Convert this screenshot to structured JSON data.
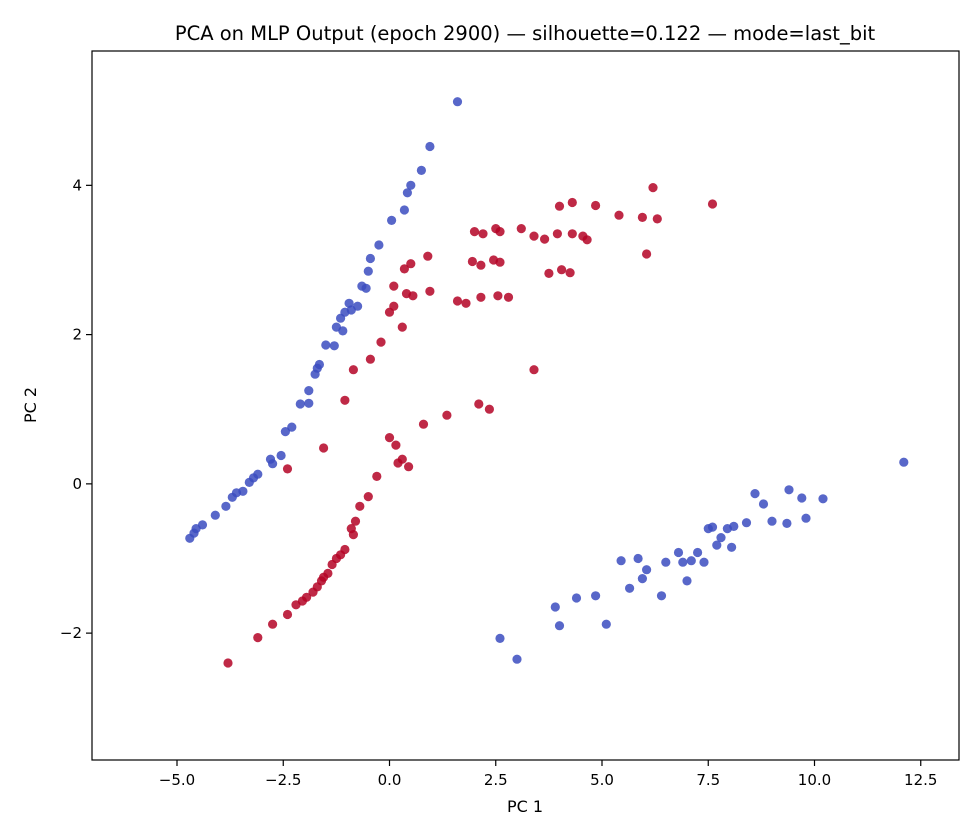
{
  "chart_data": {
    "type": "scatter",
    "title": "PCA on MLP Output (epoch 2900) — silhouette=0.122 — mode=last_bit",
    "xlabel": "PC 1",
    "ylabel": "PC 2",
    "xlim": [
      -7.0,
      13.4
    ],
    "ylim": [
      -3.7,
      5.8
    ],
    "xticks": [
      -5.0,
      -2.5,
      0.0,
      2.5,
      5.0,
      7.5,
      10.0,
      12.5
    ],
    "xtick_labels": [
      "−5.0",
      "−2.5",
      "0.0",
      "2.5",
      "5.0",
      "7.5",
      "10.0",
      "12.5"
    ],
    "yticks": [
      -2,
      0,
      2,
      4
    ],
    "ytick_labels": [
      "−2",
      "0",
      "2",
      "4"
    ],
    "grid": false,
    "legend": null,
    "series": [
      {
        "color": "#3b4cc0",
        "points": [
          [
            -4.7,
            -0.73
          ],
          [
            -4.6,
            -0.66
          ],
          [
            -4.55,
            -0.6
          ],
          [
            -4.4,
            -0.55
          ],
          [
            -4.1,
            -0.42
          ],
          [
            -3.85,
            -0.3
          ],
          [
            -3.7,
            -0.18
          ],
          [
            -3.6,
            -0.12
          ],
          [
            -3.45,
            -0.1
          ],
          [
            -3.3,
            0.02
          ],
          [
            -3.2,
            0.08
          ],
          [
            -3.1,
            0.13
          ],
          [
            -2.8,
            0.33
          ],
          [
            -2.75,
            0.27
          ],
          [
            -2.55,
            0.38
          ],
          [
            -2.45,
            0.7
          ],
          [
            -2.3,
            0.76
          ],
          [
            -2.1,
            1.07
          ],
          [
            -1.9,
            1.08
          ],
          [
            -1.9,
            1.25
          ],
          [
            -1.75,
            1.47
          ],
          [
            -1.7,
            1.55
          ],
          [
            -1.65,
            1.6
          ],
          [
            -1.5,
            1.86
          ],
          [
            -1.3,
            1.85
          ],
          [
            -1.25,
            2.1
          ],
          [
            -1.15,
            2.22
          ],
          [
            -1.1,
            2.05
          ],
          [
            -1.05,
            2.3
          ],
          [
            -0.95,
            2.42
          ],
          [
            -0.9,
            2.33
          ],
          [
            -0.75,
            2.38
          ],
          [
            -0.65,
            2.65
          ],
          [
            -0.55,
            2.62
          ],
          [
            -0.5,
            2.85
          ],
          [
            -0.45,
            3.02
          ],
          [
            -0.25,
            3.2
          ],
          [
            0.05,
            3.53
          ],
          [
            0.35,
            3.67
          ],
          [
            0.42,
            3.9
          ],
          [
            0.5,
            4.0
          ],
          [
            0.75,
            4.2
          ],
          [
            0.95,
            4.52
          ],
          [
            1.6,
            5.12
          ],
          [
            2.6,
            -2.07
          ],
          [
            3.0,
            -2.35
          ],
          [
            3.9,
            -1.65
          ],
          [
            4.0,
            -1.9
          ],
          [
            4.4,
            -1.53
          ],
          [
            4.85,
            -1.5
          ],
          [
            5.1,
            -1.88
          ],
          [
            5.45,
            -1.03
          ],
          [
            5.65,
            -1.4
          ],
          [
            5.85,
            -1.0
          ],
          [
            5.95,
            -1.27
          ],
          [
            6.05,
            -1.15
          ],
          [
            6.4,
            -1.5
          ],
          [
            6.5,
            -1.05
          ],
          [
            6.8,
            -0.92
          ],
          [
            6.9,
            -1.05
          ],
          [
            7.0,
            -1.3
          ],
          [
            7.1,
            -1.03
          ],
          [
            7.25,
            -0.92
          ],
          [
            7.4,
            -1.05
          ],
          [
            7.5,
            -0.6
          ],
          [
            7.6,
            -0.58
          ],
          [
            7.7,
            -0.82
          ],
          [
            7.8,
            -0.72
          ],
          [
            7.95,
            -0.6
          ],
          [
            8.05,
            -0.85
          ],
          [
            8.1,
            -0.57
          ],
          [
            8.4,
            -0.52
          ],
          [
            8.6,
            -0.13
          ],
          [
            8.8,
            -0.27
          ],
          [
            9.0,
            -0.5
          ],
          [
            9.35,
            -0.53
          ],
          [
            9.4,
            -0.08
          ],
          [
            9.7,
            -0.19
          ],
          [
            9.8,
            -0.46
          ],
          [
            10.2,
            -0.2
          ],
          [
            12.1,
            0.29
          ]
        ]
      },
      {
        "color": "#b40426",
        "points": [
          [
            -3.8,
            -2.4
          ],
          [
            -3.1,
            -2.06
          ],
          [
            -2.75,
            -1.88
          ],
          [
            -2.4,
            -1.75
          ],
          [
            -2.2,
            -1.62
          ],
          [
            -2.05,
            -1.57
          ],
          [
            -1.95,
            -1.52
          ],
          [
            -1.8,
            -1.45
          ],
          [
            -1.7,
            -1.38
          ],
          [
            -1.6,
            -1.3
          ],
          [
            -1.55,
            -1.25
          ],
          [
            -1.45,
            -1.2
          ],
          [
            -1.35,
            -1.08
          ],
          [
            -1.25,
            -1.0
          ],
          [
            -1.15,
            -0.95
          ],
          [
            -1.05,
            -0.88
          ],
          [
            -0.85,
            -0.68
          ],
          [
            -0.9,
            -0.6
          ],
          [
            -0.8,
            -0.5
          ],
          [
            -0.7,
            -0.3
          ],
          [
            -0.5,
            -0.17
          ],
          [
            -0.3,
            0.1
          ],
          [
            0.0,
            0.62
          ],
          [
            0.15,
            0.52
          ],
          [
            0.2,
            0.28
          ],
          [
            0.3,
            0.33
          ],
          [
            0.45,
            0.23
          ],
          [
            0.8,
            0.8
          ],
          [
            1.35,
            0.92
          ],
          [
            2.1,
            1.07
          ],
          [
            2.35,
            1.0
          ],
          [
            3.4,
            1.53
          ],
          [
            -2.4,
            0.2
          ],
          [
            -1.55,
            0.48
          ],
          [
            -1.05,
            1.12
          ],
          [
            -0.85,
            1.53
          ],
          [
            -0.45,
            1.67
          ],
          [
            -0.2,
            1.9
          ],
          [
            0.0,
            2.3
          ],
          [
            0.1,
            2.38
          ],
          [
            0.1,
            2.65
          ],
          [
            0.3,
            2.1
          ],
          [
            0.35,
            2.88
          ],
          [
            0.4,
            2.55
          ],
          [
            0.5,
            2.95
          ],
          [
            0.55,
            2.52
          ],
          [
            0.9,
            3.05
          ],
          [
            0.95,
            2.58
          ],
          [
            1.6,
            2.45
          ],
          [
            1.8,
            2.42
          ],
          [
            1.95,
            2.98
          ],
          [
            2.0,
            3.38
          ],
          [
            2.15,
            2.93
          ],
          [
            2.15,
            2.5
          ],
          [
            2.2,
            3.35
          ],
          [
            2.45,
            3.0
          ],
          [
            2.5,
            3.42
          ],
          [
            2.55,
            2.52
          ],
          [
            2.6,
            2.97
          ],
          [
            2.6,
            3.38
          ],
          [
            2.8,
            2.5
          ],
          [
            3.1,
            3.42
          ],
          [
            3.4,
            3.32
          ],
          [
            3.65,
            3.28
          ],
          [
            3.75,
            2.82
          ],
          [
            3.95,
            3.35
          ],
          [
            4.0,
            3.72
          ],
          [
            4.05,
            2.87
          ],
          [
            4.25,
            2.83
          ],
          [
            4.3,
            3.35
          ],
          [
            4.3,
            3.77
          ],
          [
            4.55,
            3.32
          ],
          [
            4.65,
            3.27
          ],
          [
            4.85,
            3.73
          ],
          [
            5.4,
            3.6
          ],
          [
            5.95,
            3.57
          ],
          [
            6.05,
            3.08
          ],
          [
            6.2,
            3.97
          ],
          [
            6.3,
            3.55
          ],
          [
            7.6,
            3.75
          ]
        ]
      }
    ]
  }
}
